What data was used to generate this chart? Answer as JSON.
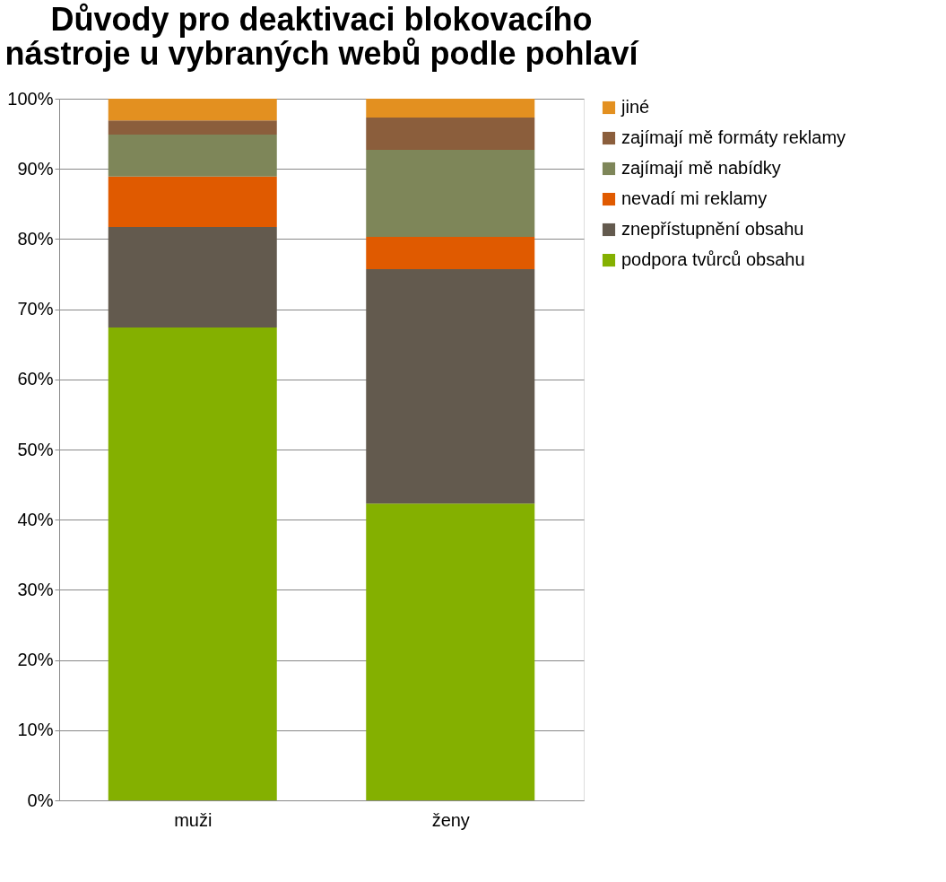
{
  "chart_data": {
    "type": "bar",
    "title": "Důvody pro deaktivaci blokovacího nástroje u vybraných webů podle pohlaví",
    "categories": [
      "muži",
      "ženy"
    ],
    "stacked": true,
    "series": [
      {
        "name": "podpora tvůrců obsahu",
        "color": "#84b000",
        "values": [
          67.4,
          42.3
        ]
      },
      {
        "name": "znepřístupnění obsahu",
        "color": "#635a4e",
        "values": [
          14.3,
          33.4
        ]
      },
      {
        "name": "nevadí mi reklamy",
        "color": "#e05a00",
        "values": [
          7.2,
          4.6
        ]
      },
      {
        "name": "zajímají mě nabídky",
        "color": "#7e8659",
        "values": [
          6.0,
          12.4
        ]
      },
      {
        "name": "zajímají mě formáty reklamy",
        "color": "#8b5e3c",
        "values": [
          2.0,
          4.6
        ]
      },
      {
        "name": "jiné",
        "color": "#e39020",
        "values": [
          3.1,
          2.7
        ]
      }
    ],
    "ylim": [
      0,
      100
    ],
    "yticks": [
      {
        "value": 0,
        "label": "0%"
      },
      {
        "value": 10,
        "label": "10%"
      },
      {
        "value": 20,
        "label": "20%"
      },
      {
        "value": 30,
        "label": "30%"
      },
      {
        "value": 40,
        "label": "40%"
      },
      {
        "value": 50,
        "label": "50%"
      },
      {
        "value": 60,
        "label": "60%"
      },
      {
        "value": 70,
        "label": "70%"
      },
      {
        "value": 80,
        "label": "80%"
      },
      {
        "value": 90,
        "label": "90%"
      },
      {
        "value": 100,
        "label": "100%"
      }
    ],
    "grid": "y",
    "legend": "right"
  }
}
